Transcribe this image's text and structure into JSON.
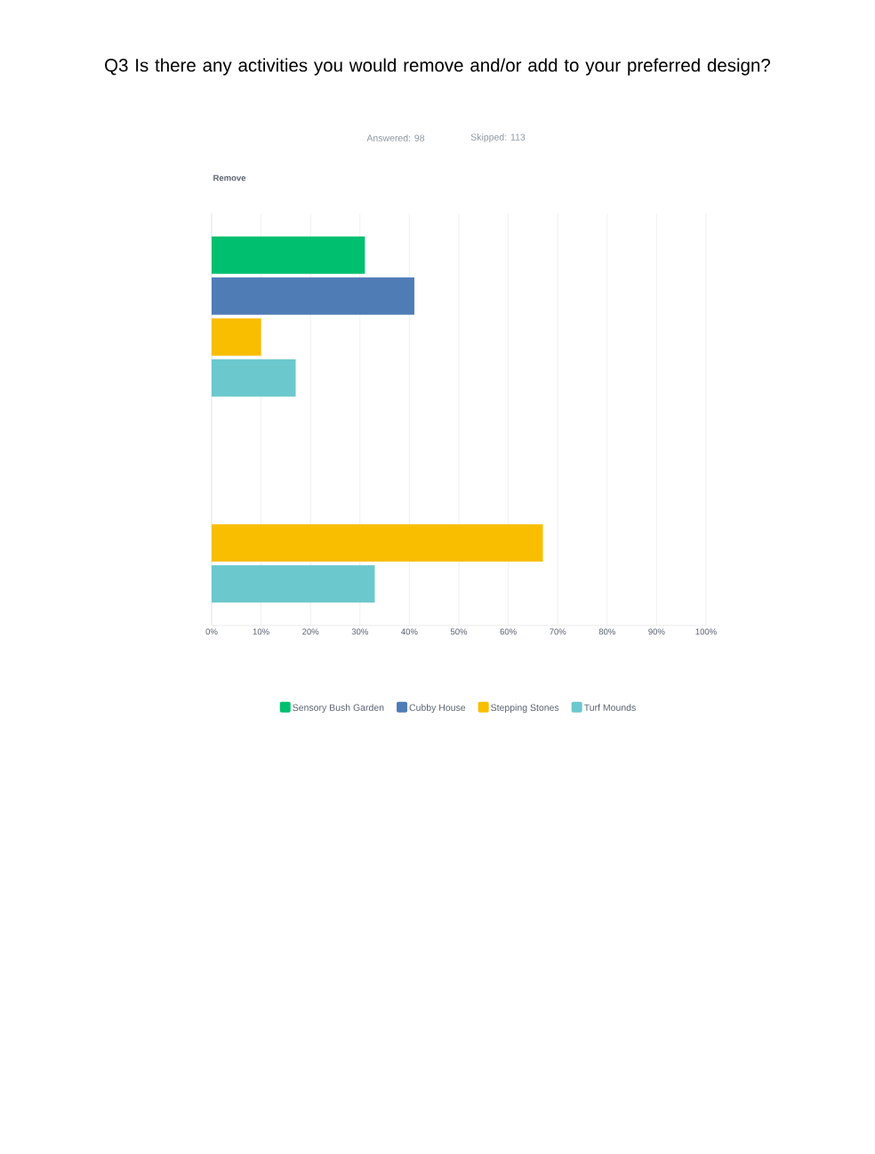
{
  "chart_data": {
    "type": "bar",
    "orientation": "horizontal",
    "title": "Q3 Is there any activities you would remove and/or add to your preferred design?",
    "subtitle": "Remove",
    "annotations": [
      "Answered: 98",
      "Skipped: 113"
    ],
    "categories": [
      null,
      null
    ],
    "series": [
      {
        "name": "Sensory Bush Garden",
        "color": "#00bf6f",
        "values": [
          31,
          null
        ]
      },
      {
        "name": "Cubby House",
        "color": "#507cb6",
        "values": [
          41,
          null
        ]
      },
      {
        "name": "Stepping Stones",
        "color": "#f9be00",
        "values": [
          10,
          67
        ]
      },
      {
        "name": "Turf Mounds",
        "color": "#6bc8cd",
        "values": [
          17,
          33
        ]
      }
    ],
    "xlim": [
      0,
      100
    ],
    "xticks": [
      {
        "value": 0,
        "label": "0%"
      },
      {
        "value": 10,
        "label": "10%"
      },
      {
        "value": 20,
        "label": "20%"
      },
      {
        "value": 30,
        "label": "30%"
      },
      {
        "value": 40,
        "label": "40%"
      },
      {
        "value": 50,
        "label": "50%"
      },
      {
        "value": 60,
        "label": "60%"
      },
      {
        "value": 70,
        "label": "70%"
      },
      {
        "value": 80,
        "label": "80%"
      },
      {
        "value": 90,
        "label": "90%"
      },
      {
        "value": 100,
        "label": "100%"
      }
    ],
    "grid": "x",
    "legend": "bottom"
  }
}
